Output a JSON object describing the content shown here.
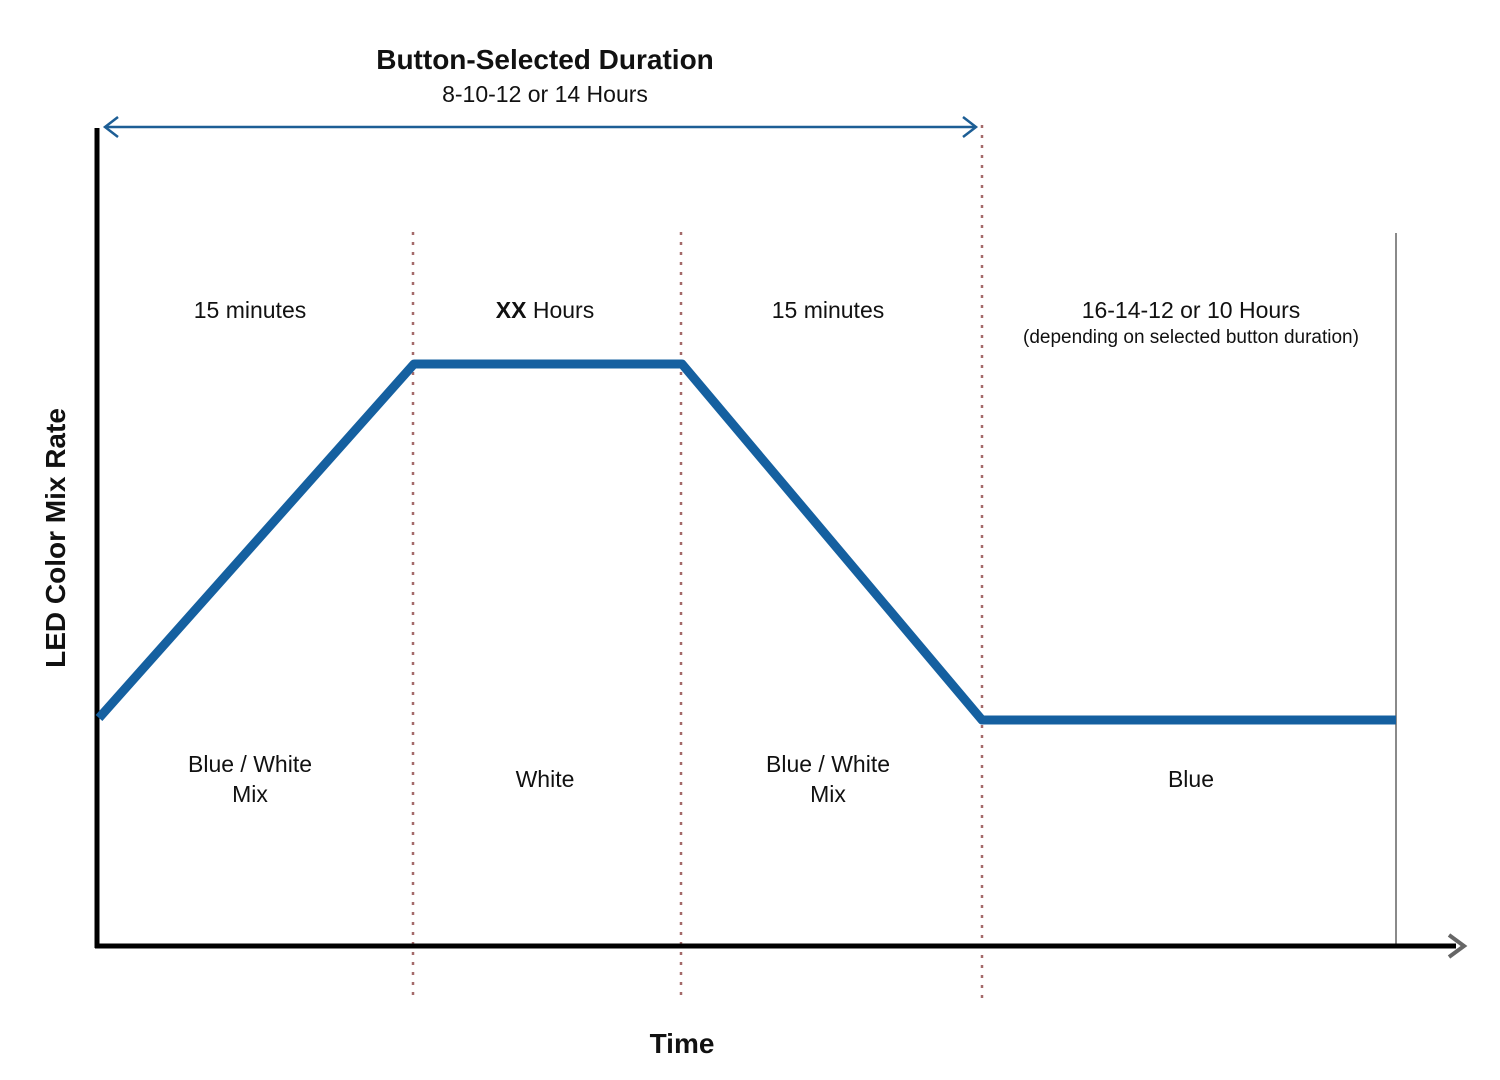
{
  "header": {
    "title": "Button-Selected Duration",
    "subtitle": "8-10-12 or 14 Hours"
  },
  "axes": {
    "y_label": "LED Color Mix Rate",
    "x_label": "Time"
  },
  "segments": [
    {
      "duration_label": "15 minutes",
      "duration_note": "",
      "color_mix": [
        "Blue / White",
        "Mix"
      ]
    },
    {
      "duration_label_bold": "XX",
      "duration_label_rest": " Hours",
      "duration_note": "",
      "color_mix": [
        "White"
      ]
    },
    {
      "duration_label": "15 minutes",
      "duration_note": "",
      "color_mix": [
        "Blue / White",
        "Mix"
      ]
    },
    {
      "duration_label": "16-14-12 or 10 Hours",
      "duration_note": "(depending on selected button duration)",
      "color_mix": [
        "Blue"
      ]
    }
  ],
  "colors": {
    "profile_line": "#1560a0",
    "span_arrow": "#1d5e95",
    "divider": "#a56a6a",
    "axis": "#000000",
    "end_line": "#8a8a8a",
    "x_arrow_head": "#666666"
  }
}
